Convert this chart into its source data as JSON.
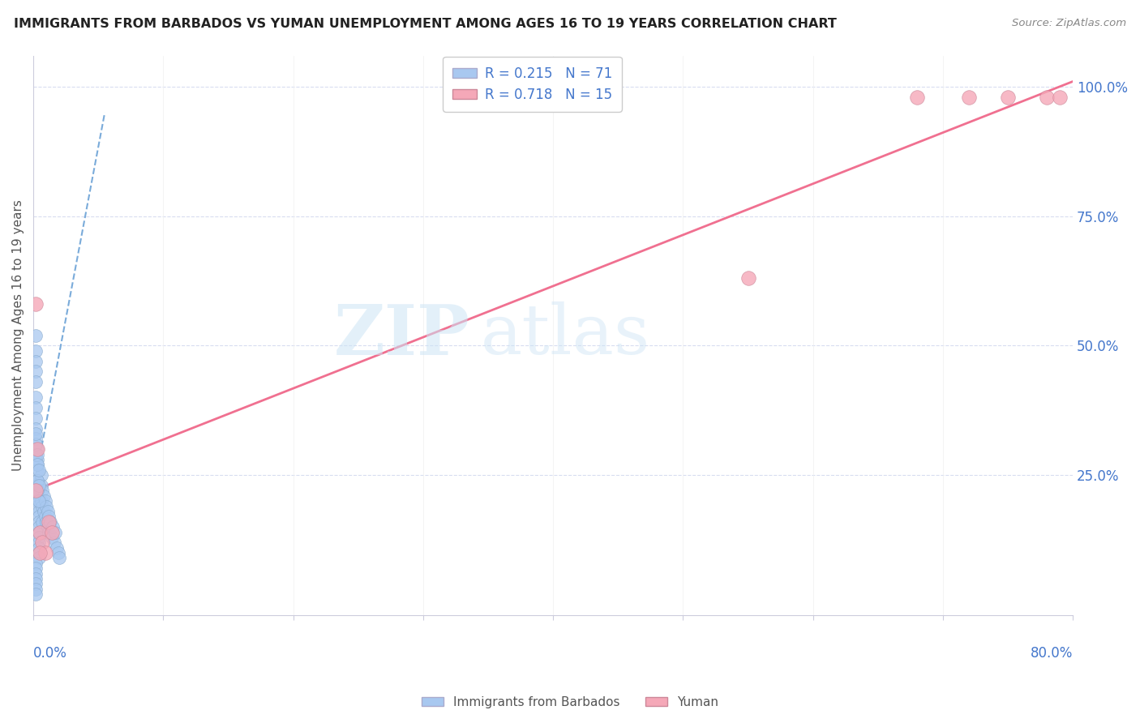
{
  "title": "IMMIGRANTS FROM BARBADOS VS YUMAN UNEMPLOYMENT AMONG AGES 16 TO 19 YEARS CORRELATION CHART",
  "source": "Source: ZipAtlas.com",
  "ylabel": "Unemployment Among Ages 16 to 19 years",
  "xaxis_label_left": "0.0%",
  "xaxis_label_right": "80.0%",
  "yaxis_labels_right": [
    "100.0%",
    "75.0%",
    "50.0%",
    "25.0%"
  ],
  "legend_line1": "R = 0.215   N = 71",
  "legend_line2": "R = 0.718   N = 15",
  "legend_label_blue": "Immigrants from Barbados",
  "legend_label_pink": "Yuman",
  "watermark_zip": "ZIP",
  "watermark_atlas": "atlas",
  "blue_color": "#a8c8f0",
  "pink_color": "#f5a8b8",
  "blue_line_color": "#7aabda",
  "pink_line_color": "#f07090",
  "title_color": "#222222",
  "axis_label_color": "#4477cc",
  "grid_color": "#d8ddf0",
  "xlim": [
    0.0,
    0.8
  ],
  "ylim": [
    -0.02,
    1.06
  ],
  "blue_scatter_x": [
    0.002,
    0.002,
    0.002,
    0.002,
    0.002,
    0.002,
    0.002,
    0.002,
    0.002,
    0.002,
    0.003,
    0.003,
    0.003,
    0.003,
    0.003,
    0.003,
    0.003,
    0.003,
    0.003,
    0.003,
    0.004,
    0.004,
    0.004,
    0.004,
    0.004,
    0.004,
    0.004,
    0.004,
    0.004,
    0.004,
    0.006,
    0.006,
    0.006,
    0.007,
    0.007,
    0.007,
    0.008,
    0.008,
    0.009,
    0.009,
    0.01,
    0.01,
    0.011,
    0.011,
    0.012,
    0.012,
    0.013,
    0.014,
    0.015,
    0.016,
    0.017,
    0.018,
    0.019,
    0.02,
    0.002,
    0.002,
    0.002,
    0.002,
    0.002,
    0.002,
    0.002,
    0.002,
    0.002,
    0.003,
    0.003,
    0.003,
    0.003,
    0.004,
    0.004,
    0.004,
    0.002
  ],
  "blue_scatter_y": [
    0.52,
    0.49,
    0.47,
    0.45,
    0.43,
    0.4,
    0.38,
    0.36,
    0.34,
    0.32,
    0.3,
    0.28,
    0.27,
    0.26,
    0.24,
    0.23,
    0.22,
    0.21,
    0.2,
    0.19,
    0.18,
    0.17,
    0.16,
    0.15,
    0.14,
    0.13,
    0.12,
    0.11,
    0.1,
    0.09,
    0.25,
    0.23,
    0.2,
    0.22,
    0.19,
    0.16,
    0.21,
    0.18,
    0.2,
    0.17,
    0.19,
    0.16,
    0.18,
    0.15,
    0.17,
    0.14,
    0.16,
    0.13,
    0.15,
    0.12,
    0.14,
    0.11,
    0.1,
    0.09,
    0.08,
    0.07,
    0.06,
    0.05,
    0.04,
    0.03,
    0.29,
    0.31,
    0.33,
    0.29,
    0.27,
    0.24,
    0.22,
    0.26,
    0.23,
    0.2,
    0.02
  ],
  "pink_scatter_x": [
    0.002,
    0.002,
    0.003,
    0.005,
    0.007,
    0.009,
    0.012,
    0.014,
    0.55,
    0.68,
    0.72,
    0.75,
    0.78,
    0.79,
    0.005
  ],
  "pink_scatter_y": [
    0.58,
    0.22,
    0.3,
    0.14,
    0.12,
    0.1,
    0.16,
    0.14,
    0.63,
    0.98,
    0.98,
    0.98,
    0.98,
    0.98,
    0.1
  ],
  "blue_trendline_x": [
    0.0,
    0.055
  ],
  "blue_trendline_y": [
    0.22,
    0.95
  ],
  "pink_trendline_x": [
    0.0,
    0.8
  ],
  "pink_trendline_y": [
    0.22,
    1.01
  ]
}
